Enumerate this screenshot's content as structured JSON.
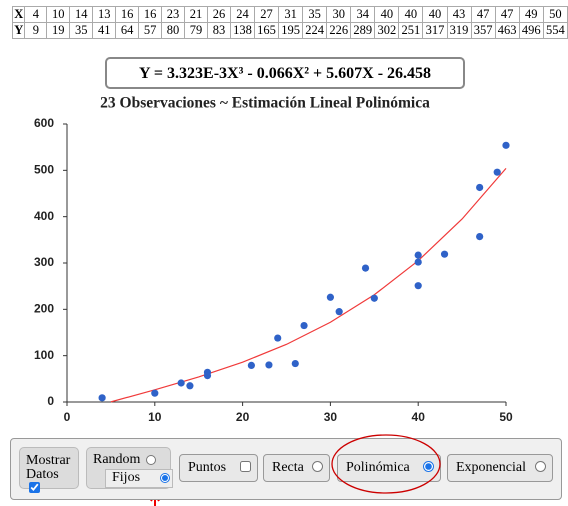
{
  "table": {
    "row_labels": [
      "X",
      "Y"
    ]
  },
  "equation": "Y = 3.323E-3X³ - 0.066X² + 5.607X - 26.458",
  "chart_data": {
    "type": "scatter",
    "title": "23 Observaciones ~ Estimación Lineal Polinómica",
    "x": [
      4,
      10,
      14,
      13,
      16,
      16,
      23,
      21,
      26,
      24,
      27,
      31,
      35,
      30,
      34,
      40,
      40,
      40,
      43,
      47,
      47,
      49,
      50
    ],
    "y": [
      9,
      19,
      35,
      41,
      64,
      57,
      80,
      79,
      83,
      138,
      165,
      195,
      224,
      226,
      289,
      302,
      251,
      317,
      319,
      357,
      463,
      496,
      554
    ],
    "color": "#2f62c8",
    "fit_curve": {
      "x": [
        5,
        10,
        15,
        20,
        25,
        30,
        35,
        40,
        45,
        50
      ],
      "values": [
        0.3,
        26.3,
        54.0,
        85.9,
        124.4,
        172.1,
        231.4,
        304.9,
        395.0,
        504.3
      ],
      "color": "#f03a3a"
    },
    "xlim": [
      0,
      50
    ],
    "xticks": [
      0,
      10,
      20,
      30,
      40,
      50
    ],
    "ylim": [
      0,
      600
    ],
    "yticks": [
      0,
      100,
      200,
      300,
      400,
      500,
      600
    ],
    "grid": false
  },
  "controls": {
    "show_data": {
      "label": "Mostrar Datos",
      "checked": true
    },
    "mode": {
      "options": [
        "Random",
        "Fijos"
      ],
      "selected": 1
    },
    "buttons": {
      "options": [
        "Puntos",
        "Recta",
        "Polinómica",
        "Exponencial"
      ],
      "selected": 2
    }
  }
}
